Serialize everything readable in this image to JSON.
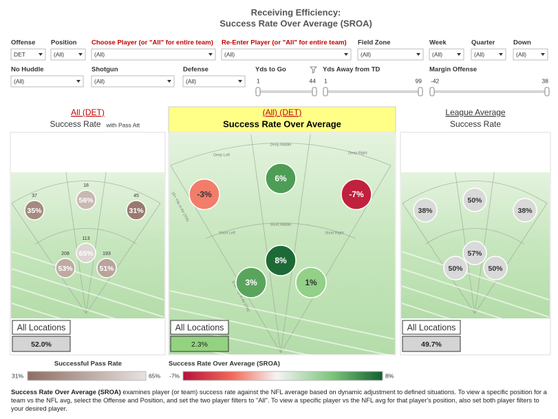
{
  "header": {
    "title": "Receiving Efficiency:",
    "subtitle": "Success Rate Over Average (SROA)"
  },
  "filters": [
    {
      "label": "Offense",
      "value": "DET"
    },
    {
      "label": "Position",
      "value": "(All)"
    },
    {
      "label": "Choose Player (or \"All\" for entire team)",
      "value": "(All)",
      "label_color": "#c00000"
    },
    {
      "label": "Re-Enter Player (or \"All\" for entire team)",
      "value": "(All)",
      "label_color": "#c00000"
    },
    {
      "label": "Field Zone",
      "value": "(All)"
    },
    {
      "label": "Week",
      "value": "(All)"
    },
    {
      "label": "Quarter",
      "value": "(All)"
    },
    {
      "label": "Down",
      "value": "(All)"
    },
    {
      "label": "No Huddle",
      "value": "(All)"
    },
    {
      "label": "Shotgun",
      "value": "(All)"
    },
    {
      "label": "Defense",
      "value": "(All)"
    }
  ],
  "sliders": [
    {
      "label": "Yds to Go",
      "min": "1",
      "max": "44"
    },
    {
      "label": "Yds Away from TD",
      "min": "1",
      "max": "99"
    },
    {
      "label": "Margin Offense",
      "min": "-42",
      "max": "38"
    }
  ],
  "panels": [
    {
      "title": "All (DET)",
      "title_color": "#c00000",
      "subtitle": "Success Rate",
      "note": "with Pass Att",
      "bubbles": [
        {
          "value": "35%",
          "count": "37",
          "color": "#a58a80"
        },
        {
          "value": "56%",
          "count": "18",
          "color": "#c8b8b2"
        },
        {
          "value": "31%",
          "count": "45",
          "color": "#9a7a6f"
        },
        {
          "value": "65%",
          "count": "113",
          "color": "#dcd5d2"
        },
        {
          "value": "53%",
          "count": "208",
          "color": "#bfaaa3"
        },
        {
          "value": "51%",
          "count": "193",
          "color": "#b9a39b"
        }
      ],
      "all_label": "All Locations",
      "all_value": "52.0%",
      "all_color": "#d4d4d4"
    },
    {
      "title": "(All) (DET)",
      "title_color": "#c00000",
      "subtitle": "Success Rate Over Average",
      "bubbles": [
        {
          "value": "-3%",
          "color": "#f27d6b"
        },
        {
          "value": "6%",
          "color": "#4e9d55"
        },
        {
          "value": "-7%",
          "color": "#c0213c"
        },
        {
          "value": "8%",
          "color": "#1e6a36"
        },
        {
          "value": "3%",
          "color": "#59a55c"
        },
        {
          "value": "1%",
          "color": "#93d088"
        }
      ],
      "field_labels": [
        "Deep Left",
        "Deep Middle",
        "Deep Right",
        "Short Left",
        "Short Middle",
        "Short Right",
        "15+ Yds in Air (YIA)",
        "0-14 Yds in Air (YIA)"
      ],
      "all_label": "All Locations",
      "all_value": "2.3%",
      "all_color": "#93d37f"
    },
    {
      "title": "League Average",
      "title_color": "#333333",
      "subtitle": "Success Rate",
      "bubbles": [
        {
          "value": "38%",
          "color": "#d9d9d9"
        },
        {
          "value": "50%",
          "color": "#d9d9d9"
        },
        {
          "value": "38%",
          "color": "#d9d9d9"
        },
        {
          "value": "57%",
          "color": "#d9d9d9"
        },
        {
          "value": "50%",
          "color": "#d9d9d9"
        },
        {
          "value": "50%",
          "color": "#d9d9d9"
        }
      ],
      "all_label": "All Locations",
      "all_value": "49.7%",
      "all_color": "#d4d4d4"
    }
  ],
  "legends": [
    {
      "title": "Successful Pass Rate",
      "min": "31%",
      "max": "65%"
    },
    {
      "title": "Success Rate Over Average (SROA)",
      "min": "-7%",
      "max": "8%"
    }
  ],
  "footnote": {
    "lead": "Success Rate Over Average (SROA)",
    "text": " examines player (or team) success rate against the NFL average based on dynamic adjustment to defined situations. To view a specific position for a team vs the NFL avg, select the Offense and Position, and set the two player filters to \"All\". To view a specific player vs the NFL avg for that player's position, also set both player filters to your desired player."
  }
}
